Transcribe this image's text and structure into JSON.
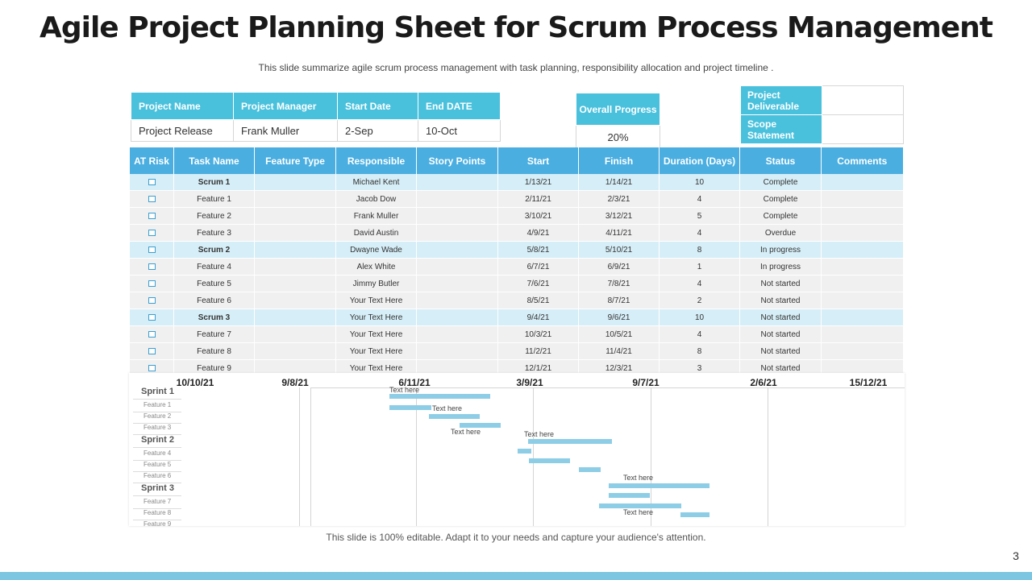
{
  "title": "Agile Project Planning Sheet for Scrum Process Management",
  "subtitle": "This slide summarize agile scrum process management with task planning, responsibility allocation and project timeline .",
  "footer": "This slide is 100% editable. Adapt it to your needs and capture your audience's attention.",
  "page_number": "3",
  "project_info": {
    "headers": [
      "Project Name",
      "Project Manager",
      "Start Date",
      "End DATE"
    ],
    "values": [
      "Project Release",
      "Frank Muller",
      "2-Sep",
      "10-Oct"
    ]
  },
  "overall_progress": {
    "label": "Overall Progress",
    "value": "20%"
  },
  "deliverables": {
    "project_deliverable": "Project Deliverable",
    "scope_statement": "Scope Statement"
  },
  "task_table": {
    "headers": [
      "AT Risk",
      "Task Name",
      "Feature Type",
      "Responsible",
      "Story Points",
      "Start",
      "Finish",
      "Duration (Days)",
      "Status",
      "Comments"
    ],
    "rows": [
      {
        "task": "Scrum 1",
        "responsible": "Michael Kent",
        "start": "1/13/21",
        "finish": "1/14/21",
        "duration": "10",
        "status": "Complete",
        "is_scrum": true
      },
      {
        "task": "Feature 1",
        "responsible": "Jacob Dow",
        "start": "2/11/21",
        "finish": "2/3/21",
        "duration": "4",
        "status": "Complete",
        "is_scrum": false
      },
      {
        "task": "Feature 2",
        "responsible": "Frank Muller",
        "start": "3/10/21",
        "finish": "3/12/21",
        "duration": "5",
        "status": "Complete",
        "is_scrum": false
      },
      {
        "task": "Feature 3",
        "responsible": "David Austin",
        "start": "4/9/21",
        "finish": "4/11/21",
        "duration": "4",
        "status": "Overdue",
        "is_scrum": false
      },
      {
        "task": "Scrum 2",
        "responsible": "Dwayne Wade",
        "start": "5/8/21",
        "finish": "5/10/21",
        "duration": "8",
        "status": "In progress",
        "is_scrum": true
      },
      {
        "task": "Feature 4",
        "responsible": "Alex White",
        "start": "6/7/21",
        "finish": "6/9/21",
        "duration": "1",
        "status": "In progress",
        "is_scrum": false
      },
      {
        "task": "Feature 5",
        "responsible": "Jimmy  Butler",
        "start": "7/6/21",
        "finish": "7/8/21",
        "duration": "4",
        "status": "Not started",
        "is_scrum": false
      },
      {
        "task": "Feature 6",
        "responsible": "Your Text Here",
        "start": "8/5/21",
        "finish": "8/7/21",
        "duration": "2",
        "status": "Not started",
        "is_scrum": false
      },
      {
        "task": "Scrum 3",
        "responsible": "Your Text Here",
        "start": "9/4/21",
        "finish": "9/6/21",
        "duration": "10",
        "status": "Not started",
        "is_scrum": true
      },
      {
        "task": "Feature 7",
        "responsible": "Your Text Here",
        "start": "10/3/21",
        "finish": "10/5/21",
        "duration": "4",
        "status": "Not started",
        "is_scrum": false
      },
      {
        "task": "Feature 8",
        "responsible": "Your Text Here",
        "start": "11/2/21",
        "finish": "11/4/21",
        "duration": "8",
        "status": "Not started",
        "is_scrum": false
      },
      {
        "task": "Feature 9",
        "responsible": "Your Text Here",
        "start": "12/1/21",
        "finish": "12/3/21",
        "duration": "3",
        "status": "Not started",
        "is_scrum": false
      }
    ]
  },
  "gantt": {
    "dates": [
      "10/10/21",
      "9/8/21",
      "6/11/21",
      "3/9/21",
      "9/7/21",
      "2/6/21",
      "15/12/21"
    ],
    "rows": [
      {
        "label": "Sprint 1",
        "group": true
      },
      {
        "label": "Feature 1",
        "group": false
      },
      {
        "label": "Feature 2",
        "group": false
      },
      {
        "label": "Feature 3",
        "group": false
      },
      {
        "label": "Sprint 2",
        "group": true
      },
      {
        "label": "Feature 4",
        "group": false
      },
      {
        "label": "Feature 5",
        "group": false
      },
      {
        "label": "Feature 6",
        "group": false
      },
      {
        "label": "Sprint 3",
        "group": true
      },
      {
        "label": "Feature 7",
        "group": false
      },
      {
        "label": "Feature 8",
        "group": false
      },
      {
        "label": "Feature 9",
        "group": false
      }
    ],
    "annotations": [
      "Text here",
      "Text here",
      "Text here",
      "Text here",
      "Text here",
      "Text here"
    ],
    "colors": {
      "bar": "#8ecde6",
      "header": "#4aaee0",
      "accent": "#4ac1dc"
    }
  }
}
